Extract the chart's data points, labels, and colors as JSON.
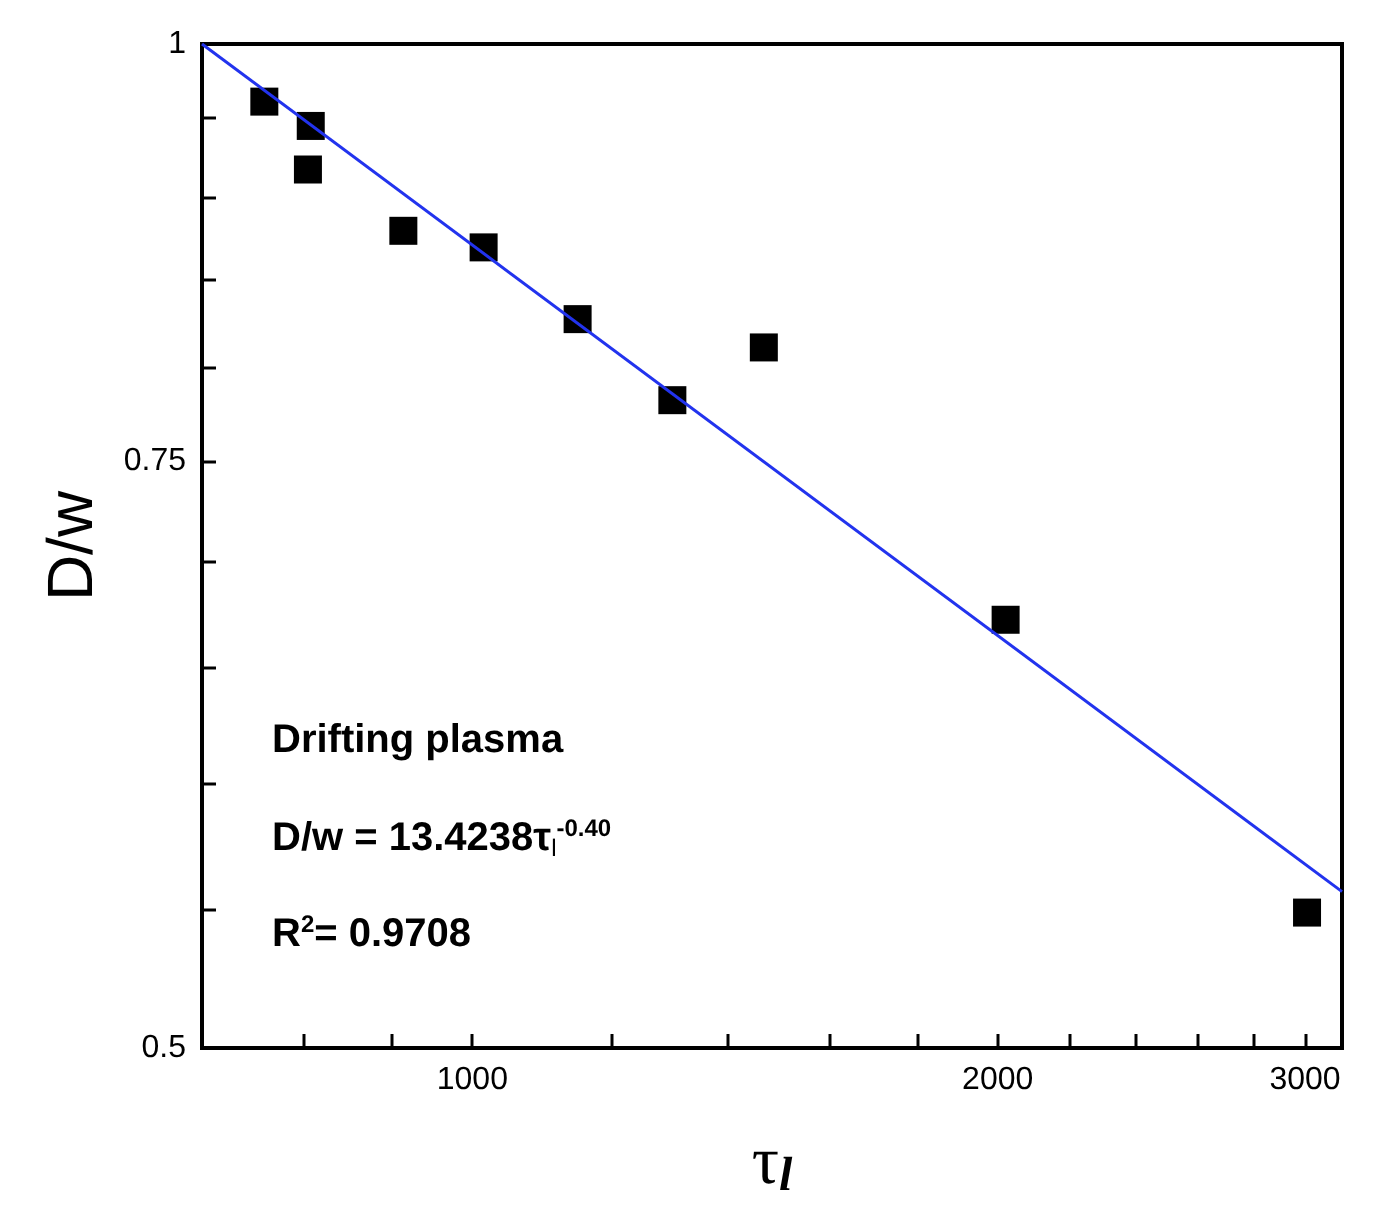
{
  "chart_data": {
    "type": "scatter",
    "xlabel": "τ$_{l}$",
    "ylabel": "D/w",
    "log": "xy",
    "marker": "square",
    "grid": false,
    "xlim": [
      700,
      3150
    ],
    "ylim": [
      0.5,
      1
    ],
    "xticks": [
      {
        "value": 800,
        "label": null
      },
      {
        "value": 900,
        "label": null
      },
      1000,
      {
        "value": 1200,
        "label": null
      },
      {
        "value": 1400,
        "label": null
      },
      {
        "value": 1600,
        "label": null
      },
      {
        "value": 1800,
        "label": null
      },
      2000,
      {
        "value": 2200,
        "label": null
      },
      {
        "value": 2400,
        "label": null
      },
      {
        "value": 2600,
        "label": null
      },
      {
        "value": 2800,
        "label": null
      },
      3000
    ],
    "yticks": [
      0.5,
      {
        "value": 0.55,
        "label": null
      },
      {
        "value": 0.6,
        "label": null
      },
      {
        "value": 0.65,
        "label": null
      },
      {
        "value": 0.7,
        "label": null
      },
      0.75,
      {
        "value": 0.8,
        "label": null
      },
      {
        "value": 0.85,
        "label": null
      },
      {
        "value": 0.9,
        "label": null
      },
      {
        "value": 0.95,
        "label": null
      },
      1
    ],
    "series": [
      {
        "color": "#000000",
        "x": [
          760,
          808,
          805,
          913,
          1015,
          1149,
          1302,
          1469,
          2021,
          3008
        ],
        "values": [
          0.961,
          0.945,
          0.917,
          0.879,
          0.869,
          0.827,
          0.782,
          0.811,
          0.672,
          0.549
        ]
      },
      {
        "type": "line",
        "color": "#2233ee",
        "marker": "none",
        "x": [
          700,
          3150
        ],
        "values": [
          1.0,
          0.557
        ]
      }
    ],
    "annotations": [
      "Drifting plasma",
      "D/w = 13.4238τ$_{l}$$^{-0.40}$",
      "R$^{2}$= 0.9708"
    ]
  }
}
